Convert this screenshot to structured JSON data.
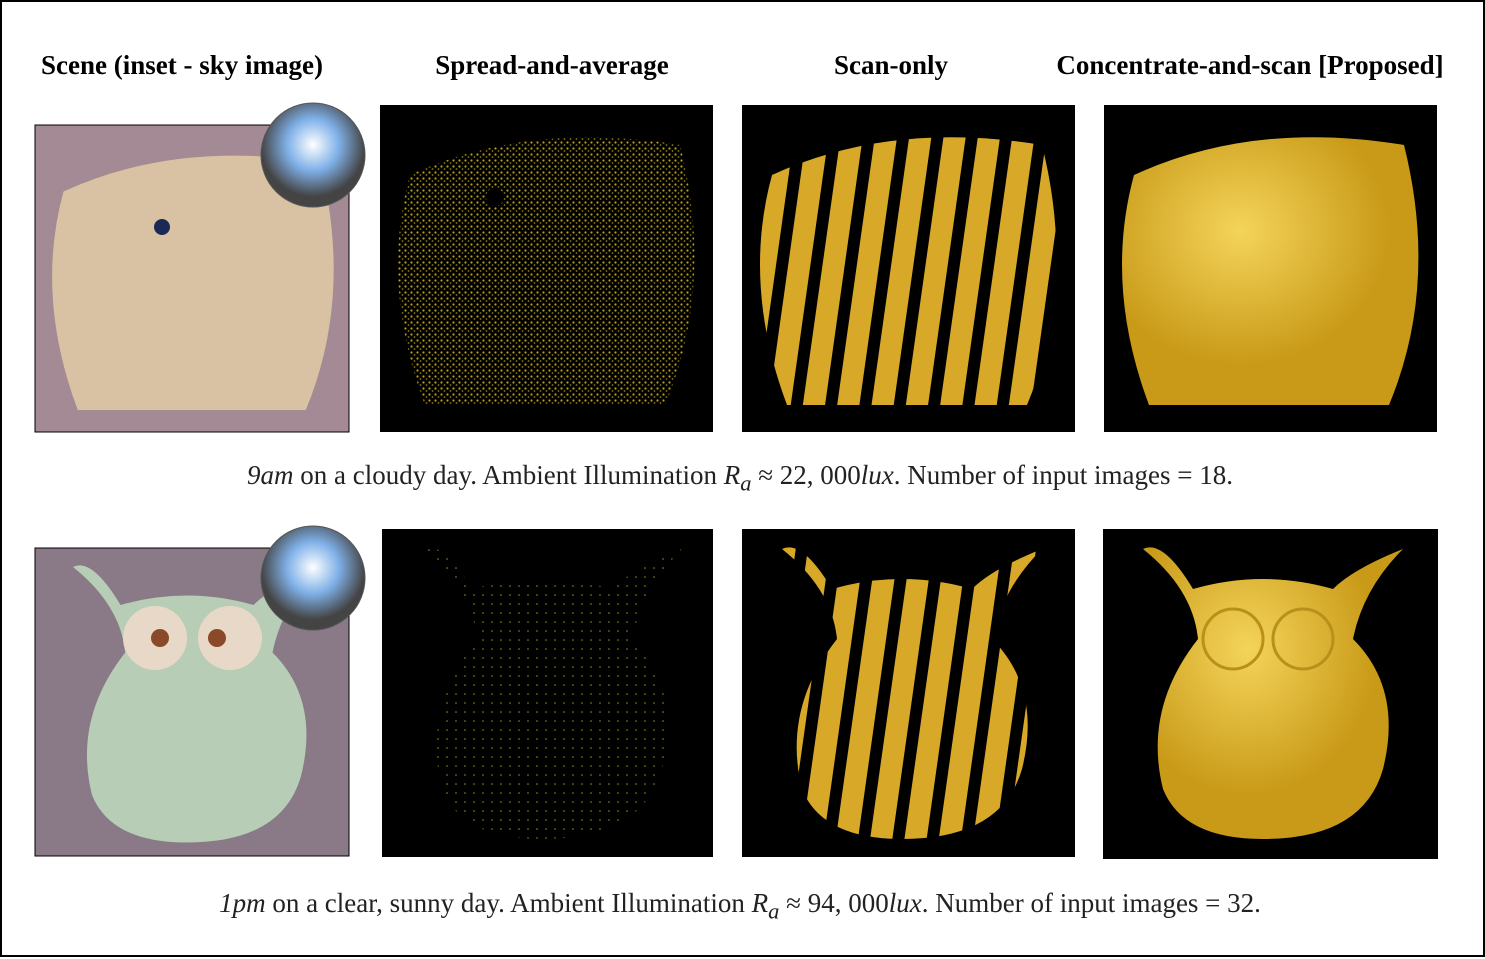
{
  "headers": [
    "Scene (inset - sky image)",
    "Spread-and-average",
    "Scan-only",
    "Concentrate-and-scan [Proposed]"
  ],
  "rows": [
    {
      "caption": {
        "time": "9am",
        "description": "on a cloudy day. Ambient Illumination",
        "symbol": "R",
        "subscript": "a",
        "illuminance": "≈ 22, 000",
        "unit": "lux",
        "tail": ". Number of input images = 18."
      }
    },
    {
      "caption": {
        "time": "1pm",
        "description": "on a clear, sunny day. Ambient Illumination",
        "symbol": "R",
        "subscript": "a",
        "illuminance": "≈ 94, 000",
        "unit": "lux",
        "tail": ". Number of input images = 32."
      }
    }
  ]
}
